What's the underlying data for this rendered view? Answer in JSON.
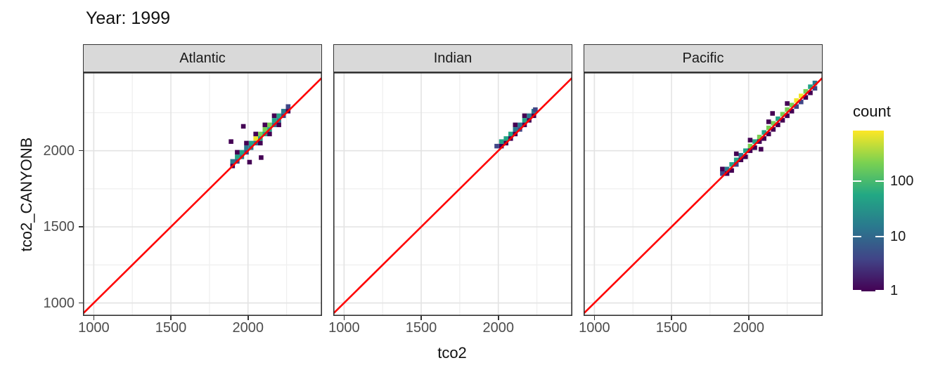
{
  "title": "Year: 1999",
  "x_axis": {
    "label": "tco2",
    "ticks": [
      1000,
      1500,
      2000
    ],
    "minor_ticks": [
      1250,
      1750,
      2250
    ],
    "range": [
      930,
      2480
    ]
  },
  "y_axis": {
    "label": "tco2_CANYONB",
    "ticks": [
      1000,
      1500,
      2000
    ],
    "minor_ticks": [
      1250,
      1750,
      2250
    ],
    "range": [
      915,
      2515
    ]
  },
  "legend": {
    "title": "count",
    "tick_labels": [
      100,
      10,
      1
    ],
    "min_count": 1,
    "max_count": 800,
    "scale": "log10"
  },
  "colors": {
    "viridis": [
      "#440154",
      "#414487",
      "#2a788e",
      "#22a884",
      "#7ad151",
      "#fde725"
    ],
    "identity_line": "#ff0000",
    "grid_major": "#e3e3e3",
    "grid_minor": "#efefef",
    "strip_bg": "#d9d9d9",
    "panel_border": "#333333",
    "axis_text": "#4d4d4d"
  },
  "chart_data": {
    "type": "heatmap",
    "geom": "bin2d",
    "x_variable": "tco2",
    "y_variable": "tco2_CANYONB",
    "fill_variable": "count",
    "bin_width": 30,
    "reference_line": "y = x",
    "facet_variable": "ocean basin",
    "facets": [
      {
        "label": "Atlantic",
        "bins": [
          [
            1900,
            1930,
            15
          ],
          [
            1930,
            1960,
            50
          ],
          [
            1960,
            1990,
            50
          ],
          [
            1990,
            2020,
            15
          ],
          [
            2020,
            2050,
            50
          ],
          [
            2050,
            2080,
            700
          ],
          [
            2080,
            2110,
            200
          ],
          [
            2110,
            2140,
            200
          ],
          [
            2140,
            2170,
            200
          ],
          [
            2170,
            2200,
            50
          ],
          [
            2200,
            2230,
            50
          ],
          [
            2230,
            2260,
            15
          ],
          [
            1930,
            1930,
            4
          ],
          [
            1960,
            1960,
            15
          ],
          [
            1990,
            1990,
            4
          ],
          [
            2020,
            2020,
            15
          ],
          [
            2050,
            2050,
            15
          ],
          [
            2080,
            2080,
            50
          ],
          [
            2110,
            2110,
            50
          ],
          [
            2140,
            2140,
            50
          ],
          [
            2170,
            2170,
            15
          ],
          [
            2200,
            2200,
            15
          ],
          [
            2230,
            2230,
            4
          ],
          [
            2260,
            2290,
            4
          ],
          [
            1900,
            1900,
            1
          ],
          [
            1930,
            1990,
            1
          ],
          [
            1990,
            2050,
            1
          ],
          [
            2050,
            2110,
            1
          ],
          [
            2110,
            2170,
            1
          ],
          [
            2170,
            2230,
            1
          ],
          [
            2200,
            2170,
            1
          ],
          [
            2140,
            2110,
            1
          ],
          [
            2080,
            2050,
            1
          ],
          [
            2260,
            2260,
            1
          ],
          [
            1890,
            2060,
            1
          ],
          [
            1970,
            2160,
            1
          ],
          [
            2010,
            1925,
            1
          ],
          [
            2085,
            1955,
            1
          ]
        ]
      },
      {
        "label": "Indian",
        "bins": [
          [
            1990,
            2030,
            4
          ],
          [
            2020,
            2060,
            50
          ],
          [
            2050,
            2080,
            50
          ],
          [
            2080,
            2110,
            50
          ],
          [
            2110,
            2140,
            15
          ],
          [
            2140,
            2170,
            15
          ],
          [
            2170,
            2200,
            50
          ],
          [
            2200,
            2230,
            15
          ],
          [
            2230,
            2260,
            15
          ],
          [
            2020,
            2030,
            1
          ],
          [
            2050,
            2050,
            1
          ],
          [
            2080,
            2080,
            1
          ],
          [
            2110,
            2110,
            1
          ],
          [
            2140,
            2140,
            4
          ],
          [
            2170,
            2170,
            1
          ],
          [
            2200,
            2200,
            1
          ],
          [
            2230,
            2230,
            1
          ],
          [
            2110,
            2170,
            1
          ],
          [
            2170,
            2230,
            1
          ],
          [
            2240,
            2270,
            4
          ]
        ]
      },
      {
        "label": "Pacific",
        "bins": [
          [
            1830,
            1850,
            4
          ],
          [
            1860,
            1880,
            15
          ],
          [
            1890,
            1910,
            50
          ],
          [
            1920,
            1940,
            50
          ],
          [
            1950,
            1970,
            15
          ],
          [
            1980,
            2000,
            50
          ],
          [
            2010,
            2030,
            200
          ],
          [
            2040,
            2060,
            50
          ],
          [
            2070,
            2090,
            200
          ],
          [
            2100,
            2120,
            50
          ],
          [
            2130,
            2150,
            200
          ],
          [
            2160,
            2180,
            200
          ],
          [
            2190,
            2210,
            50
          ],
          [
            2220,
            2240,
            200
          ],
          [
            2250,
            2270,
            200
          ],
          [
            2280,
            2300,
            200
          ],
          [
            2310,
            2330,
            700
          ],
          [
            2340,
            2360,
            700
          ],
          [
            2370,
            2390,
            200
          ],
          [
            2400,
            2420,
            50
          ],
          [
            2430,
            2445,
            15
          ],
          [
            1860,
            1850,
            1
          ],
          [
            1890,
            1870,
            1
          ],
          [
            1920,
            1910,
            4
          ],
          [
            1950,
            1940,
            1
          ],
          [
            1980,
            1960,
            1
          ],
          [
            2010,
            2000,
            1
          ],
          [
            2040,
            2020,
            1
          ],
          [
            2070,
            2060,
            1
          ],
          [
            2100,
            2080,
            1
          ],
          [
            2130,
            2110,
            1
          ],
          [
            2160,
            2140,
            1
          ],
          [
            2190,
            2170,
            1
          ],
          [
            2220,
            2200,
            1
          ],
          [
            2250,
            2230,
            1
          ],
          [
            2280,
            2260,
            1
          ],
          [
            2310,
            2290,
            4
          ],
          [
            2340,
            2320,
            4
          ],
          [
            2370,
            2350,
            1
          ],
          [
            2400,
            2380,
            1
          ],
          [
            2430,
            2410,
            4
          ],
          [
            1830,
            1880,
            1
          ],
          [
            1920,
            1980,
            1
          ],
          [
            2010,
            2070,
            1
          ],
          [
            2130,
            2190,
            1
          ],
          [
            2250,
            2310,
            1
          ],
          [
            2155,
            2245,
            1
          ],
          [
            2080,
            2010,
            1
          ]
        ]
      }
    ]
  }
}
